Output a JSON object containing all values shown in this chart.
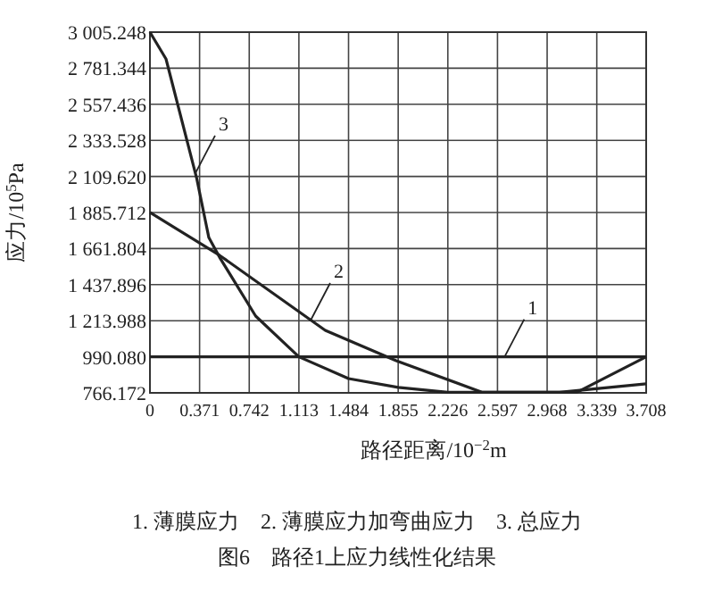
{
  "chart_data": {
    "type": "line",
    "xlabel": "路径距离/10$^{−2}$m",
    "ylabel": "应力/10$^{5}$Pa",
    "title": "图6　路径1上应力线性化结果",
    "xlim": [
      0,
      3.708
    ],
    "ylim": [
      766.172,
      3005.248
    ],
    "xticks": [
      0,
      0.371,
      0.742,
      1.113,
      1.484,
      1.855,
      2.226,
      2.597,
      2.968,
      3.339,
      3.708
    ],
    "yticks": [
      {
        "value": 766.172,
        "label": "766.172"
      },
      {
        "value": 990.08,
        "label": "990.080"
      },
      {
        "value": 1213.988,
        "label": "1 213.988"
      },
      {
        "value": 1437.896,
        "label": "1 437.896"
      },
      {
        "value": 1661.804,
        "label": "1 661.804"
      },
      {
        "value": 1885.712,
        "label": "1 885.712"
      },
      {
        "value": 2109.62,
        "label": "2 109.620"
      },
      {
        "value": 2333.528,
        "label": "2 333.528"
      },
      {
        "value": 2557.436,
        "label": "2 557.436"
      },
      {
        "value": 2781.344,
        "label": "2 781.344"
      },
      {
        "value": 3005.248,
        "label": "3 005.248"
      }
    ],
    "grid": true,
    "marker": "none",
    "line_style": "solid",
    "series": [
      {
        "color": "#222222",
        "x": [
          0,
          3.708
        ],
        "values": [
          990,
          990
        ]
      },
      {
        "color": "#222222",
        "x": [
          0,
          0.52,
          1.31,
          1.84,
          2.48,
          3.19,
          3.708
        ],
        "values": [
          1886,
          1620,
          1154,
          966,
          770,
          770,
          990
        ]
      },
      {
        "color": "#222222",
        "x": [
          0,
          0.12,
          0.35,
          0.44,
          0.52,
          0.79,
          1.113,
          1.484,
          1.855,
          2.226,
          3.06,
          3.708
        ],
        "values": [
          3005,
          2839,
          2096,
          1730,
          1608,
          1243,
          990,
          855,
          800,
          770,
          770,
          822
        ]
      }
    ],
    "annotations": [
      {
        "text": "1",
        "x": 2.65,
        "y": 990
      },
      {
        "text": "2",
        "x": 1.2,
        "y": 1215
      },
      {
        "text": "3",
        "x": 0.34,
        "y": 2130
      },
      "1. 薄膜应力　2. 薄膜应力加弯曲应力　3. 总应力"
    ]
  }
}
